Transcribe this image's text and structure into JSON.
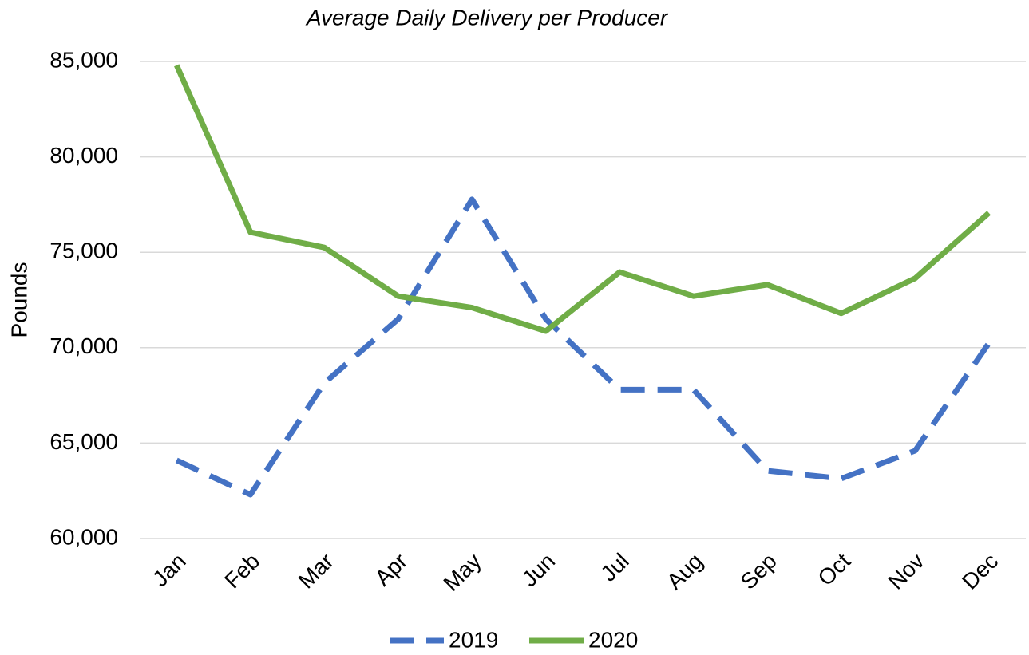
{
  "chart_data": {
    "type": "line",
    "title": "Average Daily Delivery per Producer",
    "y_label": "Pounds",
    "categories": [
      "Jan",
      "Feb",
      "Mar",
      "Apr",
      "May",
      "Jun",
      "Jul",
      "Aug",
      "Sep",
      "Oct",
      "Nov",
      "Dec"
    ],
    "series": [
      {
        "name": "2019",
        "color": "#4472c4",
        "dashed": true,
        "values": [
          64100,
          62300,
          68150,
          71500,
          77770,
          71500,
          67800,
          67800,
          63550,
          63140,
          64600,
          70240
        ]
      },
      {
        "name": "2020",
        "color": "#70ad47",
        "dashed": false,
        "values": [
          84800,
          76050,
          75250,
          72700,
          72100,
          70870,
          73960,
          72700,
          73300,
          71800,
          73630,
          77060
        ]
      }
    ],
    "ylim": [
      60000,
      85000
    ],
    "yticks": [
      {
        "value": 60000,
        "label": "60,000"
      },
      {
        "value": 65000,
        "label": "65,000"
      },
      {
        "value": 70000,
        "label": "70,000"
      },
      {
        "value": 75000,
        "label": "75,000"
      },
      {
        "value": 80000,
        "label": "80,000"
      },
      {
        "value": 85000,
        "label": "85,000"
      }
    ],
    "grid": true,
    "legend": "bottom"
  }
}
